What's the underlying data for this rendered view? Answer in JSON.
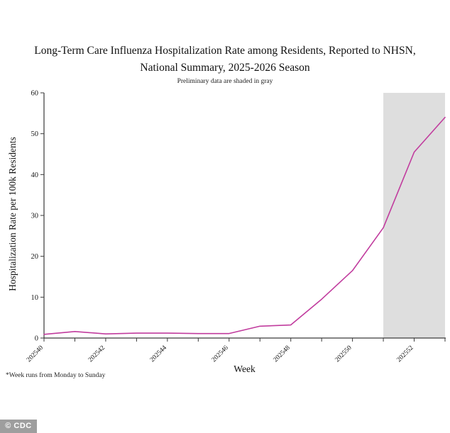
{
  "header": {
    "title_line1": "Long-Term Care Influenza Hospitalization Rate among Residents, Reported to NHSN,",
    "title_line2": "National Summary, 2025-2026 Season",
    "subtitle": "Preliminary data are shaded in gray"
  },
  "chart_data": {
    "type": "line",
    "title": "Long-Term Care Influenza Hospitalization Rate among Residents, Reported to NHSN, National Summary, 2025-2026 Season",
    "subtitle": "Preliminary data are shaded in gray",
    "xlabel": "Week",
    "ylabel": "Hospitalization Rate per 100k Residents",
    "x": [
      202540,
      202541,
      202542,
      202543,
      202544,
      202545,
      202546,
      202547,
      202548,
      202549,
      202550,
      202551,
      202552,
      202553
    ],
    "values": [
      0.9,
      1.6,
      1.0,
      1.2,
      1.2,
      1.1,
      1.1,
      2.9,
      3.2,
      9.5,
      16.5,
      27,
      45.5,
      54
    ],
    "ylim": [
      0,
      60
    ],
    "yticks": [
      0,
      10,
      20,
      30,
      40,
      50,
      60
    ],
    "xtick_labels": [
      "202540",
      "202542",
      "202544",
      "202546",
      "202548",
      "202550",
      "202552"
    ],
    "grid": false,
    "legend": "none",
    "line_color": "#c13c9e",
    "axis_color": "#3a3a3a",
    "preliminary_region": {
      "start_week": 202551,
      "end_week": 202553,
      "fill": "#dedede"
    }
  },
  "footer": {
    "footnote": "*Week runs from Monday to Sunday",
    "watermark": "© CDC"
  }
}
